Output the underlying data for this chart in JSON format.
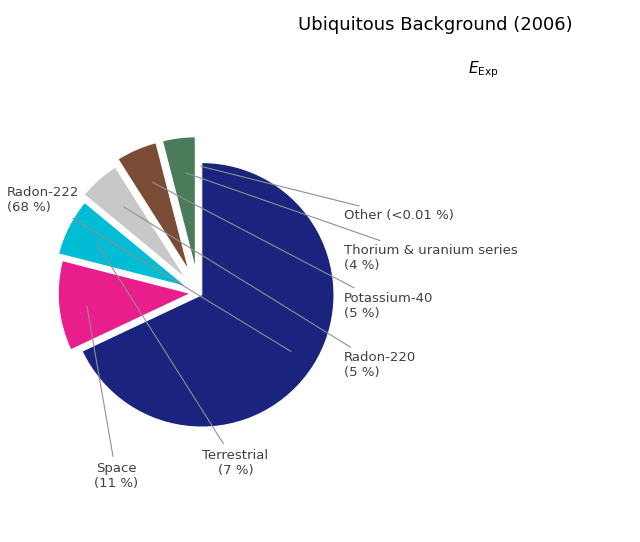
{
  "title_line1": "Ubiquitous Background (2006)",
  "slices": [
    {
      "label": "Radon-222\n(68 %)",
      "value": 68,
      "color": "#1a237e",
      "explode": 0.03
    },
    {
      "label": "Space\n(11 %)",
      "value": 11,
      "color": "#e91e8c",
      "explode": 0.06
    },
    {
      "label": "Terrestrial\n(7 %)",
      "value": 7,
      "color": "#00bcd4",
      "explode": 0.1
    },
    {
      "label": "Radon-220\n(5 %)",
      "value": 5,
      "color": "#c8c8c8",
      "explode": 0.14
    },
    {
      "label": "Potassium-40\n(5 %)",
      "value": 5,
      "color": "#7b4c35",
      "explode": 0.18
    },
    {
      "label": "Thorium & uranium series\n(4 %)",
      "value": 4,
      "color": "#4a7c59",
      "explode": 0.18
    },
    {
      "label": "Other (<0.01 %)",
      "value": 0.01,
      "color": "#aaaaaa",
      "explode": 0.18
    }
  ],
  "background_color": "#ffffff",
  "figsize": [
    6.4,
    5.42
  ],
  "dpi": 100
}
